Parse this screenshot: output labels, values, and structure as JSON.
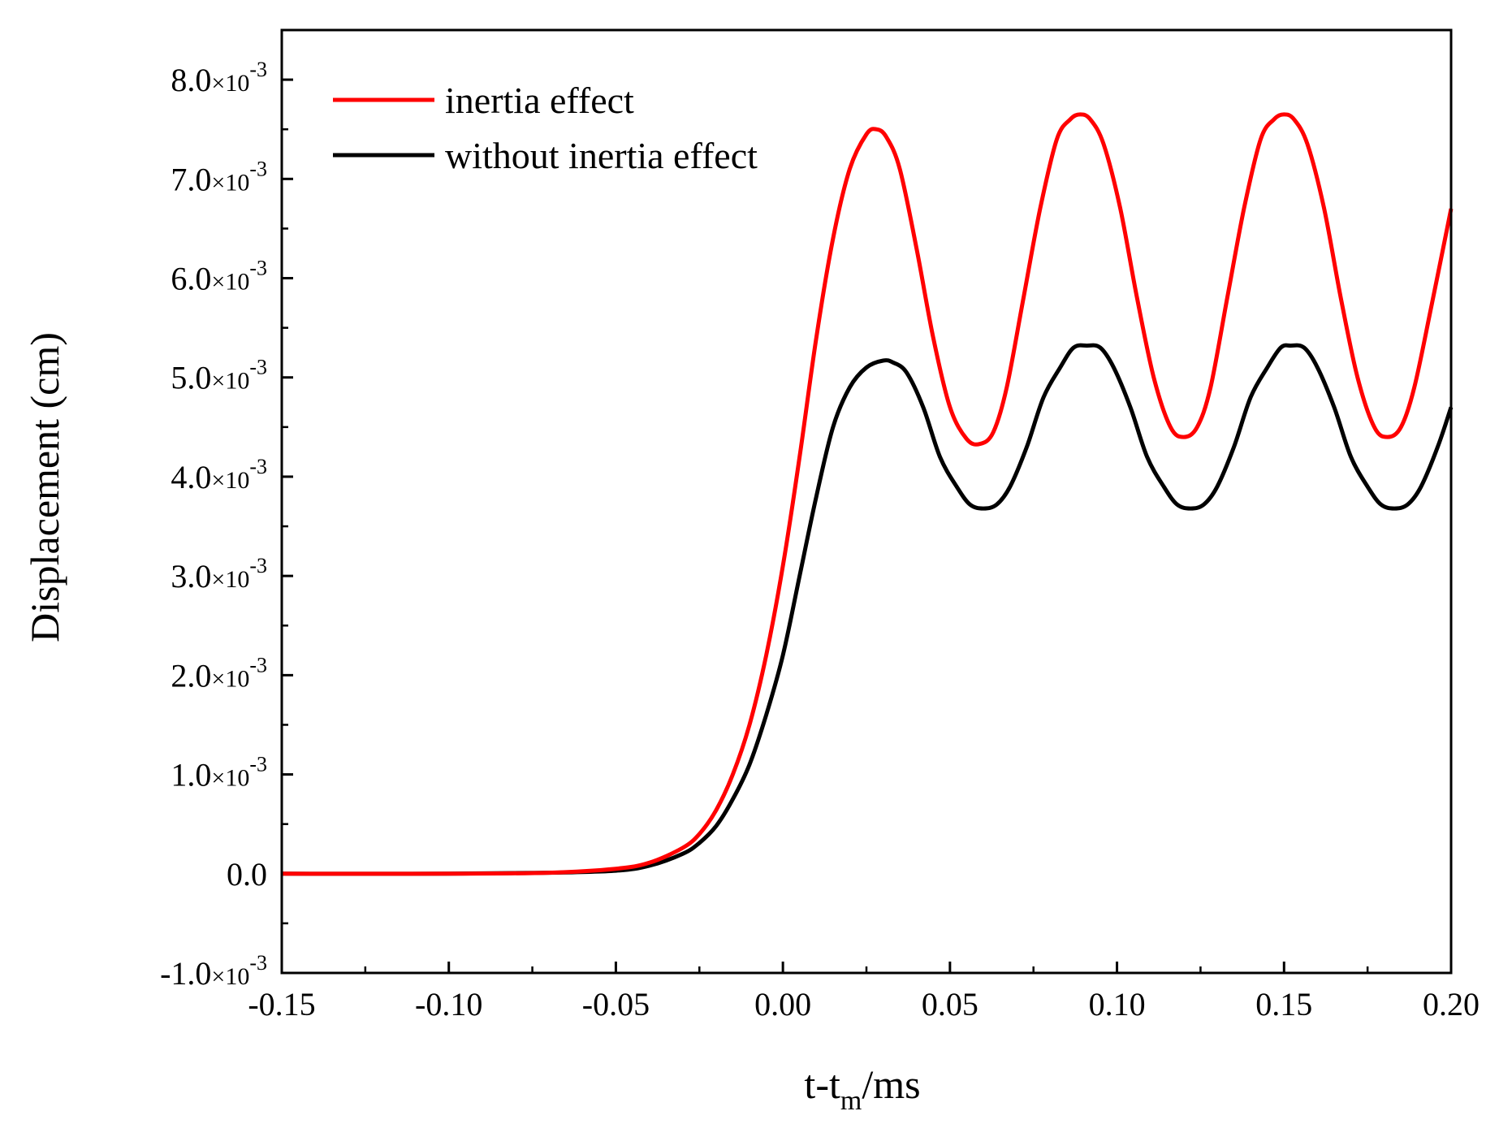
{
  "chart_data": {
    "type": "line",
    "title": "",
    "xlabel": {
      "base": "t-t",
      "sub": "m",
      "rest": "/ms"
    },
    "ylabel": "Displacement (cm)",
    "xlim": [
      -0.15,
      0.2
    ],
    "ylim": [
      -0.001,
      0.0085
    ],
    "grid": false,
    "legend_position": "top-left",
    "x_ticks": [
      {
        "value": -0.15,
        "label": "-0.15"
      },
      {
        "value": -0.1,
        "label": "-0.10"
      },
      {
        "value": -0.05,
        "label": "-0.05"
      },
      {
        "value": 0.0,
        "label": "0.00"
      },
      {
        "value": 0.05,
        "label": "0.05"
      },
      {
        "value": 0.1,
        "label": "0.10"
      },
      {
        "value": 0.15,
        "label": "0.15"
      },
      {
        "value": 0.2,
        "label": "0.20"
      }
    ],
    "y_ticks": [
      {
        "value": -0.001,
        "mantissa": "-1.0",
        "times": "×10",
        "exp": "-3"
      },
      {
        "value": 0.0,
        "mantissa": "0.0",
        "times": "",
        "exp": ""
      },
      {
        "value": 0.001,
        "mantissa": "1.0",
        "times": "×10",
        "exp": "-3"
      },
      {
        "value": 0.002,
        "mantissa": "2.0",
        "times": "×10",
        "exp": "-3"
      },
      {
        "value": 0.003,
        "mantissa": "3.0",
        "times": "×10",
        "exp": "-3"
      },
      {
        "value": 0.004,
        "mantissa": "4.0",
        "times": "×10",
        "exp": "-3"
      },
      {
        "value": 0.005,
        "mantissa": "5.0",
        "times": "×10",
        "exp": "-3"
      },
      {
        "value": 0.006,
        "mantissa": "6.0",
        "times": "×10",
        "exp": "-3"
      },
      {
        "value": 0.007,
        "mantissa": "7.0",
        "times": "×10",
        "exp": "-3"
      },
      {
        "value": 0.008,
        "mantissa": "8.0",
        "times": "×10",
        "exp": "-3"
      }
    ],
    "series": [
      {
        "name": "inertia effect",
        "color": "#ff0000",
        "x": [
          -0.15,
          -0.1,
          -0.07,
          -0.05,
          -0.04,
          -0.03,
          -0.025,
          -0.02,
          -0.015,
          -0.01,
          -0.005,
          0.0,
          0.005,
          0.01,
          0.015,
          0.02,
          0.025,
          0.028,
          0.031,
          0.035,
          0.04,
          0.045,
          0.05,
          0.055,
          0.059,
          0.063,
          0.067,
          0.072,
          0.077,
          0.082,
          0.086,
          0.089,
          0.092,
          0.096,
          0.101,
          0.106,
          0.111,
          0.116,
          0.12,
          0.124,
          0.128,
          0.133,
          0.138,
          0.143,
          0.147,
          0.15,
          0.153,
          0.157,
          0.162,
          0.167,
          0.172,
          0.177,
          0.181,
          0.185,
          0.189,
          0.194,
          0.2
        ],
        "y": [
          0.0,
          0.0,
          1e-05,
          5e-05,
          0.00011,
          0.00026,
          0.0004,
          0.00064,
          0.001,
          0.0015,
          0.0022,
          0.0031,
          0.0042,
          0.0054,
          0.0064,
          0.0071,
          0.00745,
          0.0075,
          0.00742,
          0.0071,
          0.0063,
          0.0054,
          0.0047,
          0.00438,
          0.00433,
          0.00445,
          0.0049,
          0.0058,
          0.0067,
          0.0074,
          0.0076,
          0.00765,
          0.0076,
          0.00735,
          0.0067,
          0.0058,
          0.005,
          0.0045,
          0.0044,
          0.0045,
          0.0049,
          0.0058,
          0.0067,
          0.0074,
          0.0076,
          0.00765,
          0.0076,
          0.00735,
          0.0067,
          0.0058,
          0.005,
          0.0045,
          0.0044,
          0.0045,
          0.0049,
          0.0057,
          0.0067
        ]
      },
      {
        "name": "without inertia effect",
        "color": "#000000",
        "x": [
          -0.15,
          -0.1,
          -0.07,
          -0.05,
          -0.04,
          -0.03,
          -0.025,
          -0.02,
          -0.015,
          -0.01,
          -0.005,
          0.0,
          0.005,
          0.01,
          0.015,
          0.02,
          0.025,
          0.03,
          0.033,
          0.037,
          0.042,
          0.047,
          0.052,
          0.056,
          0.06,
          0.064,
          0.068,
          0.073,
          0.078,
          0.083,
          0.087,
          0.091,
          0.095,
          0.099,
          0.104,
          0.109,
          0.114,
          0.118,
          0.122,
          0.126,
          0.13,
          0.135,
          0.14,
          0.145,
          0.149,
          0.152,
          0.156,
          0.16,
          0.165,
          0.17,
          0.175,
          0.179,
          0.183,
          0.187,
          0.191,
          0.196,
          0.2
        ],
        "y": [
          0.0,
          0.0,
          1e-05,
          3e-05,
          8e-05,
          0.0002,
          0.00031,
          0.00048,
          0.00075,
          0.0011,
          0.0016,
          0.0022,
          0.003,
          0.0038,
          0.0045,
          0.0049,
          0.0051,
          0.00517,
          0.00515,
          0.00505,
          0.0047,
          0.0042,
          0.0039,
          0.00372,
          0.00368,
          0.00372,
          0.0039,
          0.0043,
          0.0048,
          0.0051,
          0.0053,
          0.00532,
          0.0053,
          0.0051,
          0.0047,
          0.0042,
          0.0039,
          0.00372,
          0.00368,
          0.00372,
          0.0039,
          0.0043,
          0.0048,
          0.0051,
          0.0053,
          0.00532,
          0.0053,
          0.0051,
          0.0047,
          0.0042,
          0.0039,
          0.00372,
          0.00368,
          0.00372,
          0.0039,
          0.0043,
          0.0047
        ]
      }
    ]
  }
}
